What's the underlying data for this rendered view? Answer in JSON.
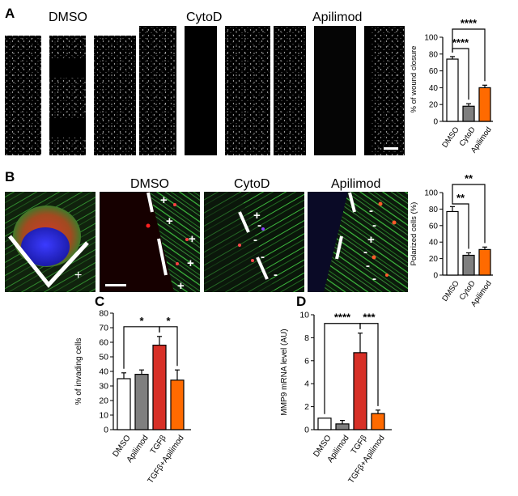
{
  "panels": {
    "A": {
      "letter": "A",
      "images": [
        {
          "label": "DMSO",
          "scale_bar": false
        },
        {
          "label": "CytoD",
          "scale_bar": false
        },
        {
          "label": "Apilimod",
          "scale_bar": true
        }
      ]
    },
    "B": {
      "letter": "B",
      "images": [
        {
          "label": "",
          "markers": [
            "+"
          ]
        },
        {
          "label": "DMSO",
          "markers": [
            "+",
            "+",
            "+",
            "+",
            "+"
          ]
        },
        {
          "label": "CytoD",
          "markers": [
            "+",
            "-",
            "-",
            "-",
            "-"
          ]
        },
        {
          "label": "Apilimod",
          "markers": [
            "-",
            "-",
            "+",
            "-",
            "-",
            "-"
          ]
        }
      ]
    },
    "C": {
      "letter": "C"
    },
    "D": {
      "letter": "D"
    }
  },
  "colors": {
    "white_bar": "#ffffff",
    "gray_bar": "#7f7f7f",
    "red_bar": "#d73027",
    "orange_bar": "#ff6a00"
  },
  "chart_data": [
    {
      "id": "A",
      "type": "bar",
      "categories": [
        "DMSO",
        "CytoD",
        "Apilimod"
      ],
      "values": [
        74,
        18,
        40
      ],
      "errors": [
        3,
        3,
        3
      ],
      "colors": [
        "#ffffff",
        "#7f7f7f",
        "#ff6a00"
      ],
      "ylabel": "% of wound closure",
      "ylim": [
        0,
        100
      ],
      "yticks": [
        0,
        20,
        40,
        60,
        80,
        100
      ],
      "significance": [
        {
          "from": 0,
          "to": 1,
          "label": "****"
        },
        {
          "from": 0,
          "to": 2,
          "label": "****"
        }
      ]
    },
    {
      "id": "B",
      "type": "bar",
      "categories": [
        "DMSO",
        "CytoD",
        "Apilimod"
      ],
      "values": [
        77,
        24,
        31
      ],
      "errors": [
        6,
        3,
        3
      ],
      "colors": [
        "#ffffff",
        "#7f7f7f",
        "#ff6a00"
      ],
      "ylabel": "Polarized cells (%)",
      "ylim": [
        0,
        100
      ],
      "yticks": [
        0,
        20,
        40,
        60,
        80,
        100
      ],
      "significance": [
        {
          "from": 0,
          "to": 1,
          "label": "**"
        },
        {
          "from": 0,
          "to": 2,
          "label": "**"
        }
      ]
    },
    {
      "id": "C",
      "type": "bar",
      "categories": [
        "DMSO",
        "Apilimod",
        "TGFβ",
        "TGFβ+Apilimod"
      ],
      "values": [
        35,
        38,
        58,
        34
      ],
      "errors": [
        4,
        3,
        6,
        7
      ],
      "colors": [
        "#ffffff",
        "#7f7f7f",
        "#d73027",
        "#ff6a00"
      ],
      "ylabel": "% of invading cells",
      "ylim": [
        0,
        80
      ],
      "yticks": [
        0,
        10,
        20,
        30,
        40,
        50,
        60,
        70,
        80
      ],
      "significance": [
        {
          "from": 0,
          "to": 2,
          "label": "*"
        },
        {
          "from": 2,
          "to": 3,
          "label": "*"
        }
      ]
    },
    {
      "id": "D",
      "type": "bar",
      "categories": [
        "DMSO",
        "Apilimod",
        "TGFβ",
        "TGFβ+Apilimod"
      ],
      "values": [
        1,
        0.5,
        6.7,
        1.4
      ],
      "errors": [
        0,
        0.3,
        1.7,
        0.3
      ],
      "colors": [
        "#ffffff",
        "#7f7f7f",
        "#d73027",
        "#ff6a00"
      ],
      "ylabel": "MMP9 mRNA level (AU)",
      "ylim": [
        0,
        10
      ],
      "yticks": [
        0,
        2,
        4,
        6,
        8,
        10
      ],
      "significance": [
        {
          "from": 0,
          "to": 2,
          "label": "****"
        },
        {
          "from": 2,
          "to": 3,
          "label": "***"
        }
      ]
    }
  ]
}
